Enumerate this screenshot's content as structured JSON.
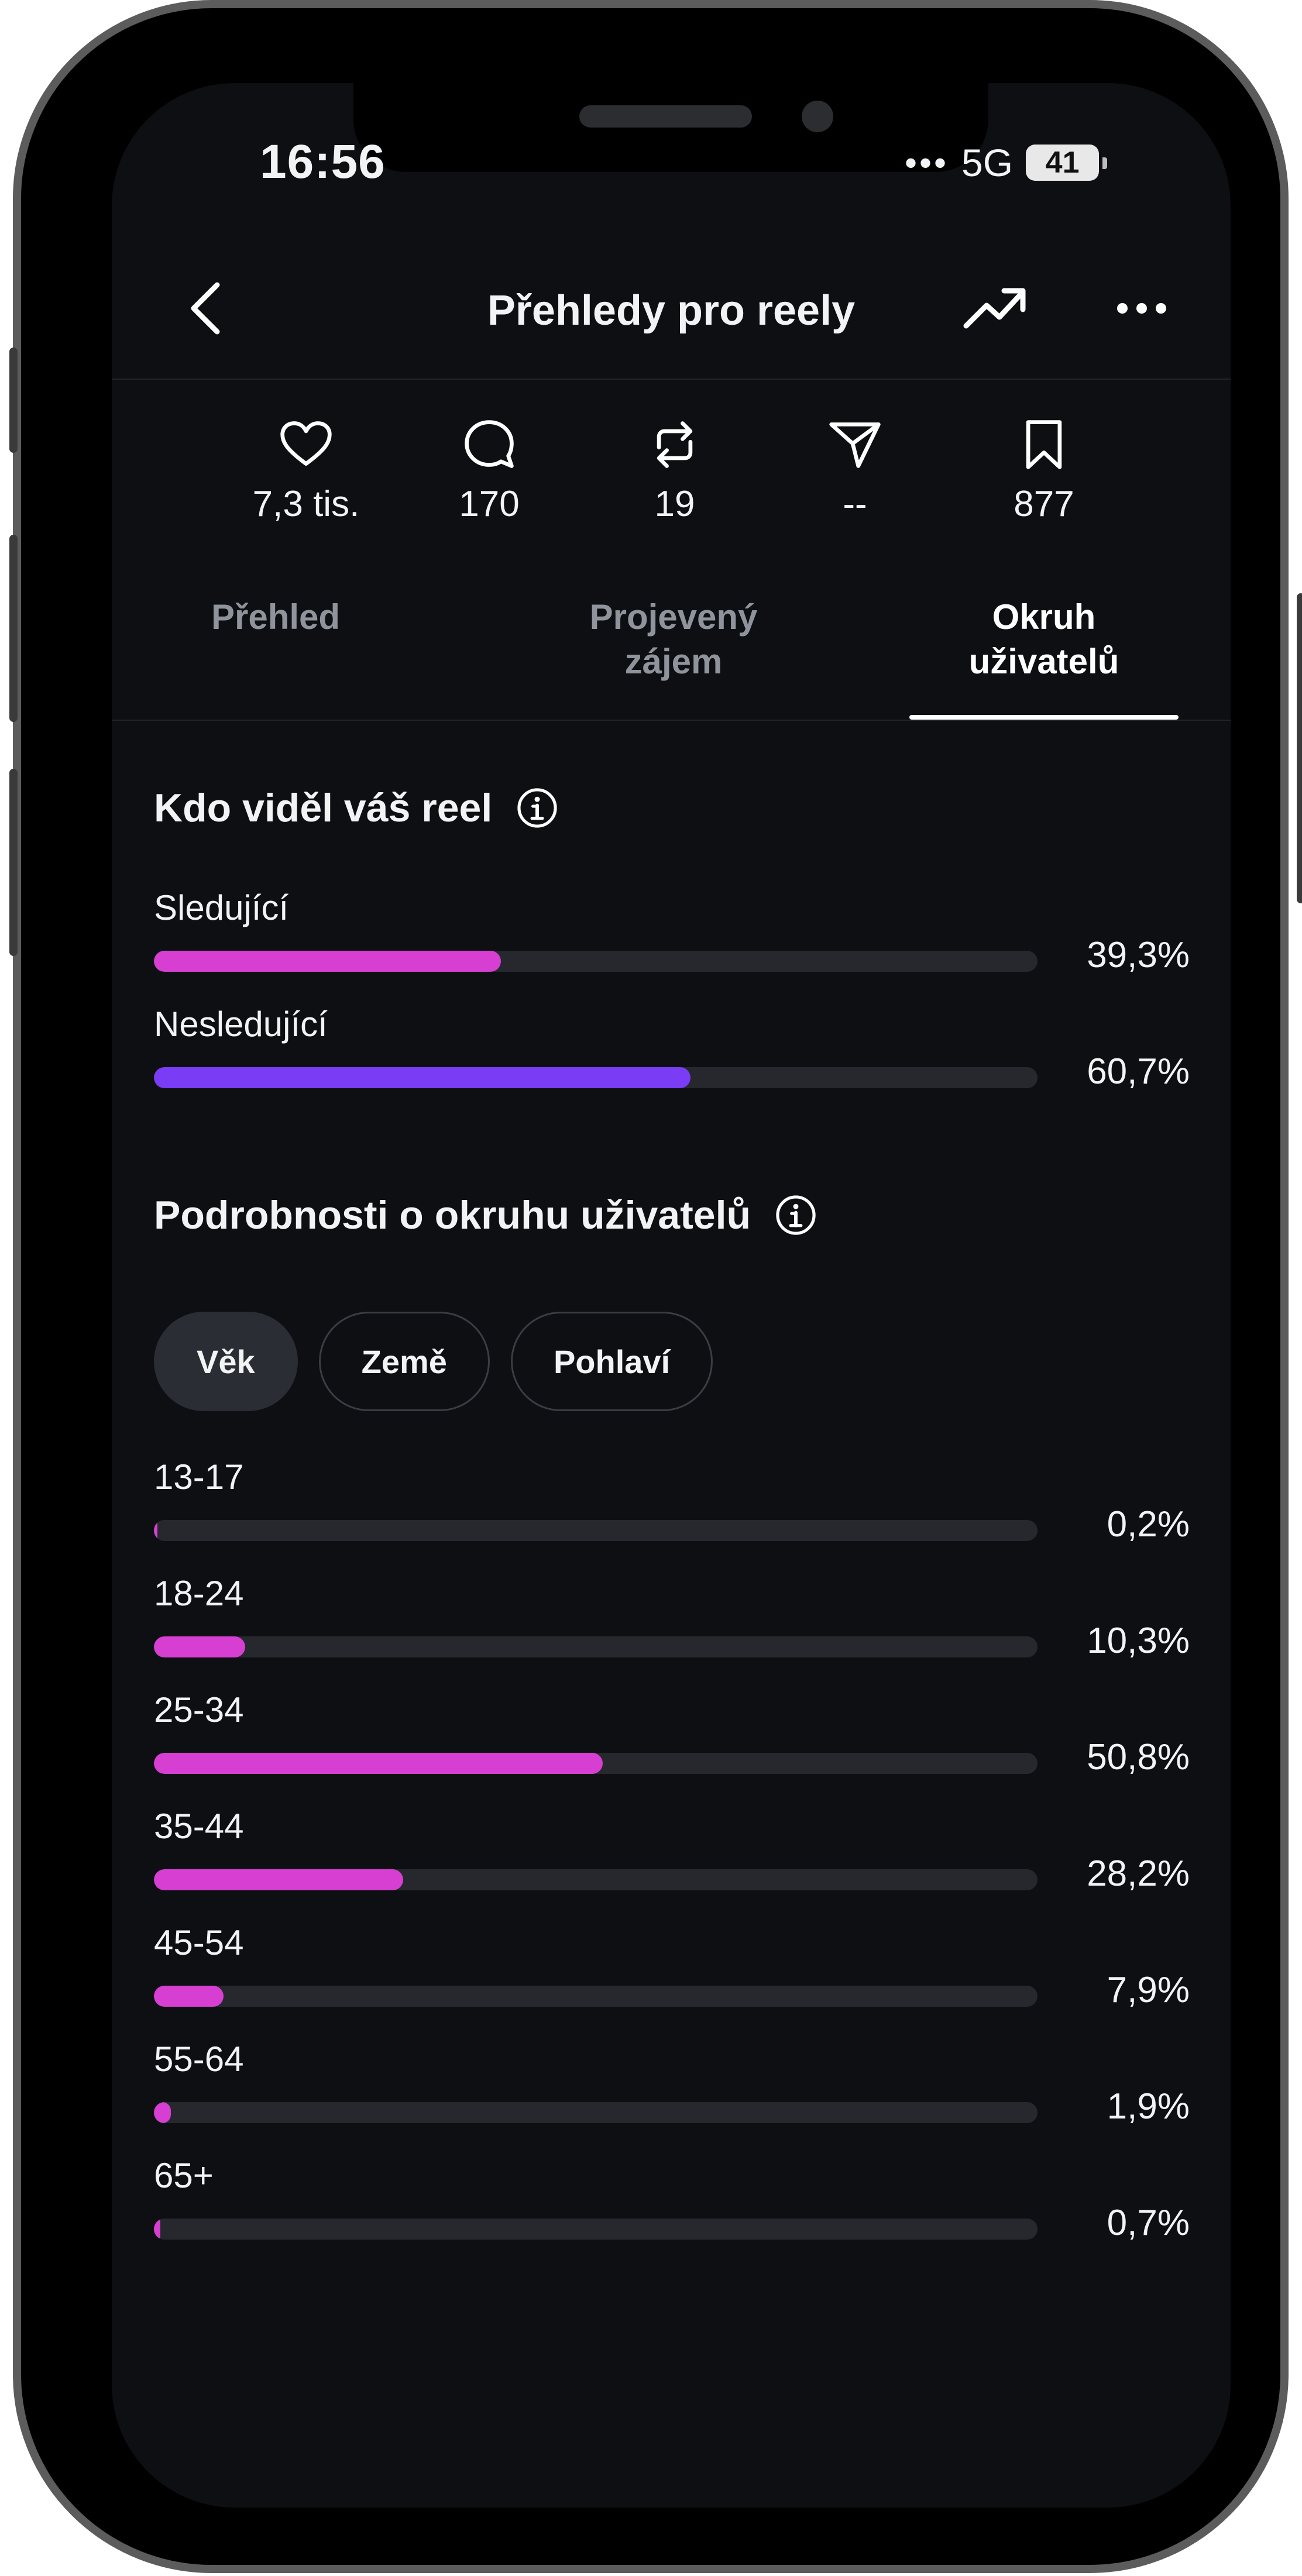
{
  "status_bar": {
    "time": "16:56",
    "network": "5G",
    "battery": "41"
  },
  "header": {
    "title": "Přehledy pro reely"
  },
  "stats": [
    {
      "icon": "heart-icon",
      "value": "7,3 tis."
    },
    {
      "icon": "comment-icon",
      "value": "170"
    },
    {
      "icon": "repost-icon",
      "value": "19"
    },
    {
      "icon": "share-icon",
      "value": "--"
    },
    {
      "icon": "bookmark-icon",
      "value": "877"
    }
  ],
  "tabs": {
    "overview": "Přehled",
    "interest_line1": "Projevený",
    "interest_line2": "zájem",
    "audience_line1": "Okruh",
    "audience_line2": "uživatelů",
    "active": "audience"
  },
  "who_viewed": {
    "title": "Kdo viděl váš reel",
    "rows": [
      {
        "label": "Sledující",
        "percent": "39,3%",
        "value": 39.3,
        "color": "#d63fd1"
      },
      {
        "label": "Nesledující",
        "percent": "60,7%",
        "value": 60.7,
        "color": "#7a3cf5"
      }
    ]
  },
  "audience_details": {
    "title": "Podrobnosti o okruhu uživatelů",
    "filters": [
      "Věk",
      "Země",
      "Pohlaví"
    ],
    "selected_filter": "Věk",
    "bar_color": "#d63fd1",
    "rows": [
      {
        "label": "13-17",
        "percent": "0,2%",
        "value": 0.2
      },
      {
        "label": "18-24",
        "percent": "10,3%",
        "value": 10.3
      },
      {
        "label": "25-34",
        "percent": "50,8%",
        "value": 50.8
      },
      {
        "label": "35-44",
        "percent": "28,2%",
        "value": 28.2
      },
      {
        "label": "45-54",
        "percent": "7,9%",
        "value": 7.9
      },
      {
        "label": "55-64",
        "percent": "1,9%",
        "value": 1.9
      },
      {
        "label": "65+",
        "percent": "0,7%",
        "value": 0.7
      }
    ]
  }
}
